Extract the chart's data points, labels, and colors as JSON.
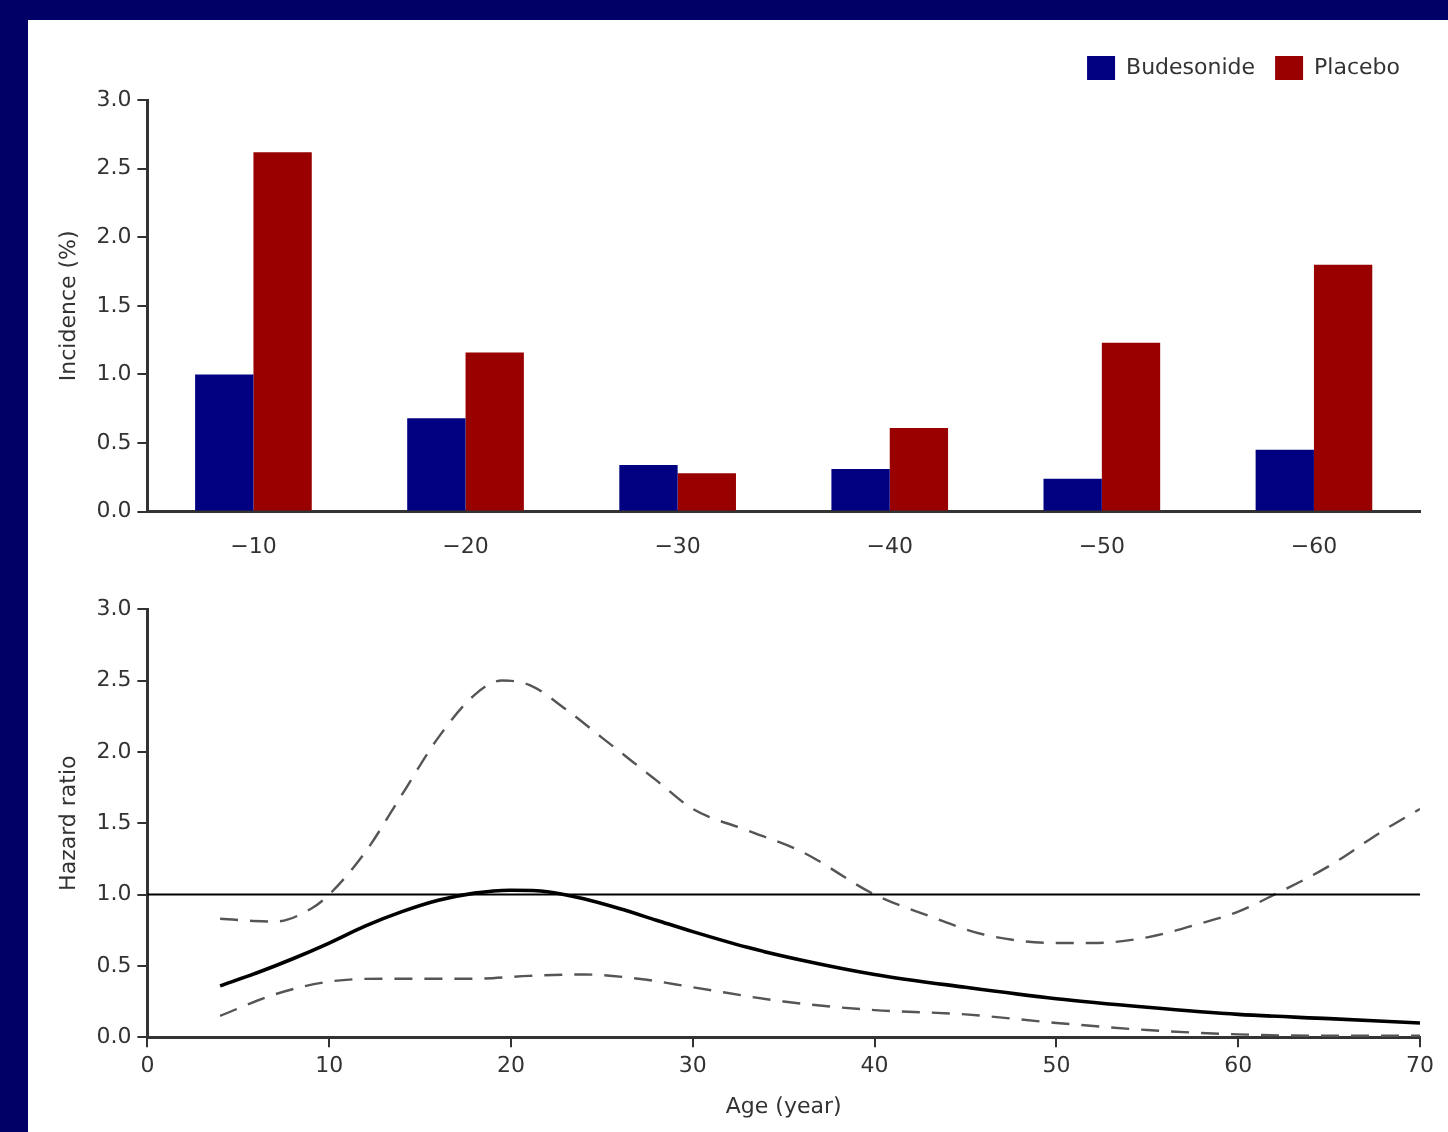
{
  "chart_data": [
    {
      "type": "bar",
      "ylabel": "Incidence (%)",
      "categories": [
        "−10",
        "−20",
        "−30",
        "−40",
        "−50",
        "−60"
      ],
      "series": [
        {
          "name": "Budesonide",
          "color": "#000080",
          "values": [
            1.0,
            0.68,
            0.34,
            0.31,
            0.24,
            0.45
          ]
        },
        {
          "name": "Placebo",
          "color": "#990000",
          "values": [
            2.62,
            1.16,
            0.28,
            0.61,
            1.23,
            1.8
          ]
        }
      ],
      "ylim": [
        0,
        3
      ],
      "yticks": [
        {
          "value": 0,
          "label": "0.0"
        },
        {
          "value": 0.5,
          "label": "0.5"
        },
        {
          "value": 1,
          "label": "1.0"
        },
        {
          "value": 1.5,
          "label": "1.5"
        },
        {
          "value": 2,
          "label": "2.0"
        },
        {
          "value": 2.5,
          "label": "2.5"
        },
        {
          "value": 3,
          "label": "3.0"
        }
      ],
      "grid": false,
      "legend": "top right"
    },
    {
      "type": "line",
      "xlabel": "Age (year)",
      "ylabel": "Hazard ratio",
      "marker": "none",
      "series": [
        {
          "color": "#000000",
          "line_style": "solid",
          "x": [
            4,
            6,
            8,
            10,
            12,
            14,
            16,
            18,
            20,
            22,
            24,
            26,
            28,
            30,
            33,
            36,
            40,
            45,
            50,
            55,
            60,
            65,
            70
          ],
          "values": [
            0.36,
            0.45,
            0.55,
            0.66,
            0.78,
            0.88,
            0.96,
            1.01,
            1.03,
            1.02,
            0.97,
            0.9,
            0.82,
            0.74,
            0.63,
            0.54,
            0.44,
            0.35,
            0.27,
            0.21,
            0.16,
            0.13,
            0.1
          ]
        },
        {
          "color": "#555555",
          "line_style": "dashed",
          "x": [
            4,
            7,
            9,
            10,
            12,
            14,
            16,
            18,
            19.5,
            21,
            23,
            25,
            28,
            30,
            33,
            36,
            40,
            43,
            46,
            50,
            52,
            55,
            58,
            60,
            62,
            65,
            68,
            70
          ],
          "values": [
            0.83,
            0.81,
            0.9,
            1.0,
            1.3,
            1.7,
            2.1,
            2.4,
            2.5,
            2.47,
            2.3,
            2.1,
            1.8,
            1.6,
            1.45,
            1.3,
            1.0,
            0.85,
            0.72,
            0.66,
            0.66,
            0.7,
            0.8,
            0.88,
            1.0,
            1.2,
            1.45,
            1.6
          ]
        },
        {
          "color": "#555555",
          "line_style": "dashed",
          "x": [
            4,
            7,
            10,
            13,
            18,
            21,
            24,
            27,
            30,
            35,
            40,
            45,
            50,
            55,
            60,
            65,
            70
          ],
          "values": [
            0.15,
            0.3,
            0.39,
            0.41,
            0.41,
            0.43,
            0.44,
            0.41,
            0.35,
            0.25,
            0.19,
            0.16,
            0.1,
            0.05,
            0.02,
            0.01,
            0.01
          ]
        }
      ],
      "ref_lines": [
        {
          "axis": "y",
          "value": 1,
          "color": "#000000"
        }
      ],
      "xlim": [
        0,
        70
      ],
      "xticks": [
        0,
        10,
        20,
        30,
        40,
        50,
        60,
        70
      ],
      "ylim": [
        0,
        3
      ],
      "yticks": [
        {
          "value": 0,
          "label": "0.0"
        },
        {
          "value": 0.5,
          "label": "0.5"
        },
        {
          "value": 1,
          "label": "1.0"
        },
        {
          "value": 1.5,
          "label": "1.5"
        },
        {
          "value": 2,
          "label": "2.0"
        },
        {
          "value": 2.5,
          "label": "2.5"
        },
        {
          "value": 3,
          "label": "3.0"
        }
      ],
      "grid": false,
      "legend": false
    }
  ]
}
